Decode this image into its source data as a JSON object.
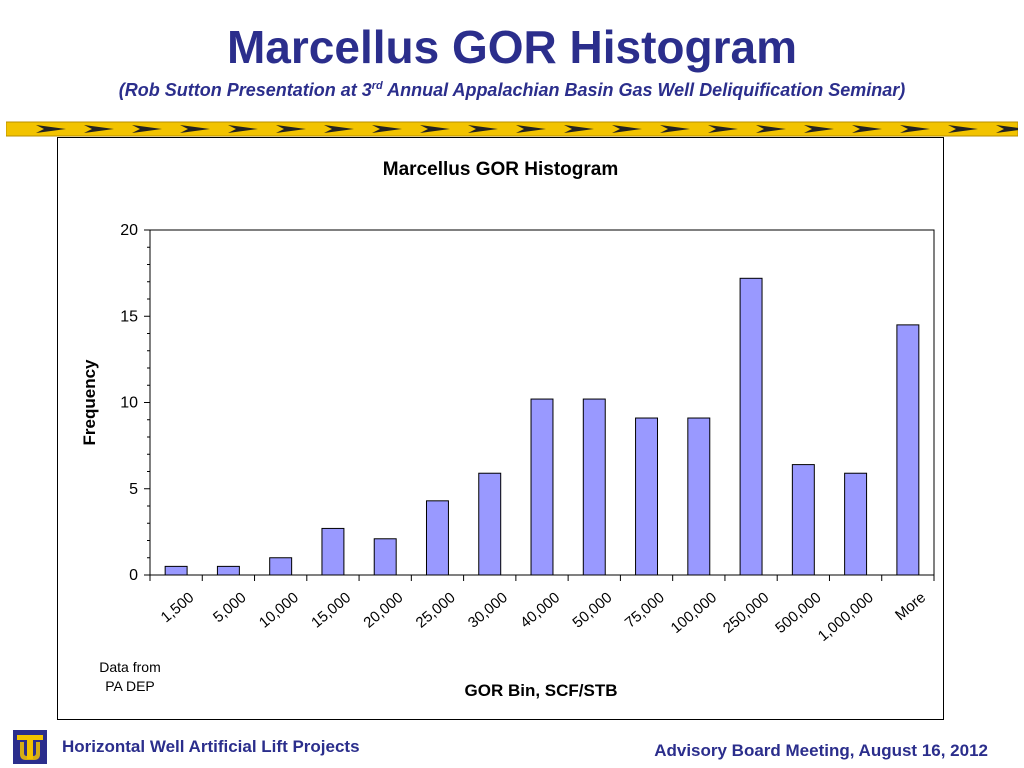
{
  "slide": {
    "title": "Marcellus GOR Histogram",
    "subtitle_pre": "(Rob Sutton Presentation at 3",
    "subtitle_sup": "rd",
    "subtitle_post": " Annual Appalachian Basin Gas Well Deliquification Seminar)"
  },
  "footer": {
    "left": "Horizontal Well Artificial Lift Projects",
    "right": "Advisory Board Meeting, August 16, 2012"
  },
  "source_note": {
    "line1": "Data from",
    "line2": "PA DEP"
  },
  "colors": {
    "title": "#2b2e8c",
    "bar_fill": "#9999ff",
    "bar_stroke": "#000000",
    "banner_yellow": "#f2c300",
    "banner_dark": "#222222"
  },
  "icons": {
    "logo": "tu-logo-icon",
    "banner": "caution-arrow-banner"
  },
  "chart_data": {
    "type": "bar",
    "title": "Marcellus GOR Histogram",
    "xlabel": "GOR Bin, SCF/STB",
    "ylabel": "Frequency",
    "categories": [
      "1,500",
      "5,000",
      "10,000",
      "15,000",
      "20,000",
      "25,000",
      "30,000",
      "40,000",
      "50,000",
      "75,000",
      "100,000",
      "250,000",
      "500,000",
      "1,000,000",
      "More"
    ],
    "values": [
      0.5,
      0.5,
      1,
      2.7,
      2.1,
      4.3,
      5.9,
      10.2,
      10.2,
      9.1,
      9.1,
      17.2,
      6.4,
      5.9,
      14.5
    ],
    "ylim": [
      0,
      20
    ],
    "yticks": [
      0,
      5,
      10,
      15,
      20
    ],
    "grid": false,
    "legend": "none"
  }
}
